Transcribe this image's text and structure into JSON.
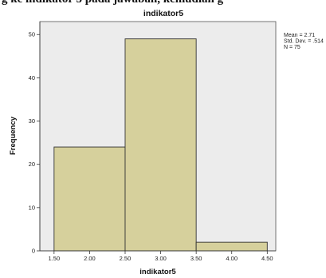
{
  "caption_fragment": "g ke indikator 5 pada jawaban, kemudian g",
  "chart_data": {
    "type": "bar",
    "title": "indikator5",
    "xlabel": "indikator5",
    "ylabel": "Frequency",
    "bins": [
      {
        "start": 1.5,
        "end": 2.5,
        "count": 24
      },
      {
        "start": 2.5,
        "end": 3.5,
        "count": 49
      },
      {
        "start": 3.5,
        "end": 4.5,
        "count": 2
      }
    ],
    "xlim": [
      1.3,
      4.62
    ],
    "ylim": [
      0,
      53
    ],
    "xticks": [
      "1.50",
      "2.00",
      "2.50",
      "3.00",
      "3.50",
      "4.00",
      "4.50"
    ],
    "yticks": [
      "0",
      "10",
      "20",
      "30",
      "40",
      "50"
    ],
    "stats": [
      "Mean = 2.71",
      "Std. Dev. = .514",
      "N = 75"
    ],
    "bar_color": "#d6d09c",
    "plot_bg": "#ececec",
    "grid": false
  }
}
